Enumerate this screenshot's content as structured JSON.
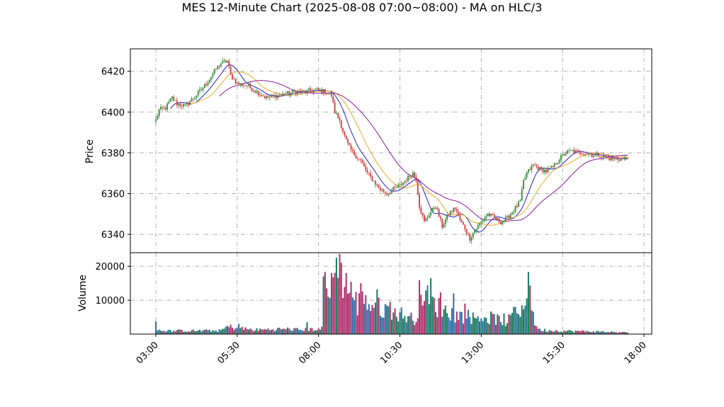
{
  "title": "MES 12-Minute Chart (2025-08-08 07:00~08:00) - MA on HLC/3",
  "colors": {
    "up": "#2e8b3a",
    "down": "#d43a3a",
    "ma_fast": "#1f1fd6",
    "ma_mid": "#f5a623",
    "ma_slow": "#8b1a9b",
    "vol_up": "#1a7a5a",
    "vol_down": "#b0306a",
    "vol_neutral": "#2a6fa8",
    "grid": "#b0b0b0"
  },
  "chart_data": [
    {
      "type": "candlestick",
      "title": "MES 12-Minute Chart (2025-08-08 07:00~08:00) - MA on HLC/3",
      "ylabel": "Price",
      "xlabel": "",
      "ylim": [
        6331,
        6431
      ],
      "yticks": [
        6340,
        6360,
        6380,
        6400,
        6420
      ],
      "xticks": [
        "03:00",
        "05:30",
        "08:00",
        "10:30",
        "13:00",
        "15:30",
        "18:00"
      ],
      "grid": true,
      "anchors": [
        [
          0,
          6396
        ],
        [
          2,
          6401
        ],
        [
          6,
          6402
        ],
        [
          10,
          6407
        ],
        [
          13,
          6404
        ],
        [
          18,
          6403
        ],
        [
          22,
          6406
        ],
        [
          28,
          6411
        ],
        [
          32,
          6415
        ],
        [
          36,
          6420
        ],
        [
          40,
          6424
        ],
        [
          44,
          6425
        ],
        [
          46,
          6418
        ],
        [
          50,
          6414
        ],
        [
          56,
          6413
        ],
        [
          62,
          6410
        ],
        [
          68,
          6407
        ],
        [
          74,
          6408
        ],
        [
          80,
          6409
        ],
        [
          86,
          6410
        ],
        [
          92,
          6410
        ],
        [
          98,
          6411
        ],
        [
          104,
          6410
        ],
        [
          108,
          6408
        ],
        [
          110,
          6400
        ],
        [
          113,
          6396
        ],
        [
          116,
          6388
        ],
        [
          118,
          6384
        ],
        [
          121,
          6380
        ],
        [
          126,
          6376
        ],
        [
          130,
          6370
        ],
        [
          134,
          6366
        ],
        [
          138,
          6362
        ],
        [
          142,
          6360
        ],
        [
          146,
          6362
        ],
        [
          150,
          6364
        ],
        [
          154,
          6367
        ],
        [
          158,
          6370
        ],
        [
          160,
          6367
        ],
        [
          162,
          6354
        ],
        [
          165,
          6346
        ],
        [
          168,
          6350
        ],
        [
          172,
          6354
        ],
        [
          176,
          6344
        ],
        [
          180,
          6350
        ],
        [
          184,
          6353
        ],
        [
          187,
          6347
        ],
        [
          190,
          6343
        ],
        [
          193,
          6338
        ],
        [
          196,
          6342
        ],
        [
          200,
          6346
        ],
        [
          204,
          6350
        ],
        [
          208,
          6348
        ],
        [
          212,
          6346
        ],
        [
          216,
          6348
        ],
        [
          220,
          6352
        ],
        [
          224,
          6356
        ],
        [
          226,
          6366
        ],
        [
          228,
          6370
        ],
        [
          232,
          6374
        ],
        [
          236,
          6372
        ],
        [
          240,
          6371
        ],
        [
          244,
          6373
        ],
        [
          248,
          6377
        ],
        [
          252,
          6380
        ],
        [
          256,
          6381
        ],
        [
          260,
          6380
        ],
        [
          264,
          6380
        ],
        [
          268,
          6379
        ],
        [
          272,
          6379
        ],
        [
          276,
          6378
        ],
        [
          280,
          6377
        ],
        [
          284,
          6377
        ],
        [
          288,
          6377
        ],
        [
          290,
          6378
        ]
      ],
      "bars": 291,
      "moving_averages": [
        {
          "period": 10,
          "color_key": "ma_fast"
        },
        {
          "period": 20,
          "color_key": "ma_mid"
        },
        {
          "period": 40,
          "color_key": "ma_slow"
        }
      ]
    },
    {
      "type": "bar",
      "ylabel": "Volume",
      "ylim": [
        0,
        24000
      ],
      "yticks": [
        10000,
        20000
      ],
      "grid": true,
      "volume_profile": [
        [
          0,
          5800
        ],
        [
          1,
          1500
        ],
        [
          5,
          1000
        ],
        [
          40,
          1100
        ],
        [
          44,
          2300
        ],
        [
          60,
          1300
        ],
        [
          80,
          1600
        ],
        [
          90,
          1300
        ],
        [
          103,
          1700
        ],
        [
          104,
          16000
        ],
        [
          106,
          11500
        ],
        [
          110,
          16000
        ],
        [
          113,
          19000
        ],
        [
          116,
          13000
        ],
        [
          118,
          15000
        ],
        [
          124,
          9000
        ],
        [
          128,
          11000
        ],
        [
          132,
          8500
        ],
        [
          136,
          10000
        ],
        [
          140,
          7500
        ],
        [
          144,
          8000
        ],
        [
          148,
          6500
        ],
        [
          152,
          6000
        ],
        [
          156,
          5000
        ],
        [
          160,
          4800
        ],
        [
          162,
          12000
        ],
        [
          164,
          14000
        ],
        [
          168,
          10000
        ],
        [
          172,
          9000
        ],
        [
          176,
          7500
        ],
        [
          180,
          7000
        ],
        [
          184,
          6000
        ],
        [
          188,
          5500
        ],
        [
          192,
          5500
        ],
        [
          196,
          5000
        ],
        [
          200,
          5500
        ],
        [
          204,
          5000
        ],
        [
          208,
          5000
        ],
        [
          212,
          4000
        ],
        [
          216,
          3800
        ],
        [
          220,
          6000
        ],
        [
          224,
          6500
        ],
        [
          226,
          9000
        ],
        [
          228,
          10000
        ],
        [
          230,
          13000
        ],
        [
          232,
          5000
        ],
        [
          234,
          2500
        ],
        [
          236,
          1300
        ],
        [
          250,
          1000
        ],
        [
          270,
          800
        ],
        [
          290,
          500
        ]
      ],
      "spikes": [
        [
          214,
          6100
        ],
        [
          220,
          8000
        ],
        [
          225,
          8500
        ],
        [
          229,
          18300
        ],
        [
          230,
          14300
        ],
        [
          103,
          17000
        ],
        [
          111,
          22500
        ],
        [
          114,
          21000
        ],
        [
          108,
          18000
        ],
        [
          117,
          18000
        ],
        [
          126,
          15000
        ],
        [
          129,
          11500
        ],
        [
          169,
          16500
        ],
        [
          175,
          12300
        ],
        [
          183,
          12000
        ],
        [
          190,
          9000
        ],
        [
          93,
          3500
        ],
        [
          51,
          3000
        ]
      ]
    }
  ]
}
